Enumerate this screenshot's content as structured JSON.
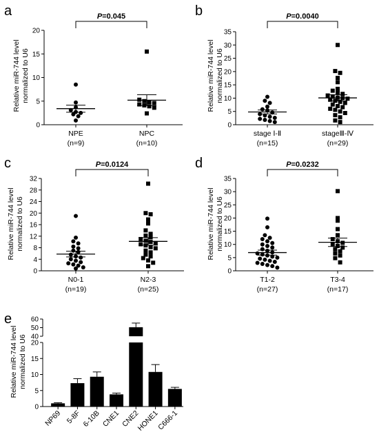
{
  "chart_data": [
    {
      "panel": "a",
      "type": "scatter",
      "ylabel": [
        "Relative miR-744 level",
        "normalized to U6"
      ],
      "ylim": [
        0,
        20
      ],
      "yticks": [
        "0",
        "5",
        "10",
        "15",
        "20"
      ],
      "pvalue": {
        "label": "P",
        "value": "=0.045"
      },
      "categories": [
        {
          "label": "NPE",
          "n": "(n=9)",
          "marker": "circle",
          "mean": 3.4,
          "sem": 0.75,
          "values": [
            8.5,
            4.7,
            3.7,
            3.1,
            2.7,
            2.5,
            2.2,
            1.8,
            0.9
          ]
        },
        {
          "label": "NPC",
          "n": "(n=10)",
          "marker": "square",
          "mean": 5.2,
          "sem": 1.15,
          "values": [
            15.5,
            5.3,
            5.0,
            4.8,
            4.6,
            4.3,
            4.1,
            3.9,
            3.6,
            2.4
          ]
        }
      ]
    },
    {
      "panel": "b",
      "type": "scatter",
      "ylabel": [
        "Relative miR-744 level",
        "normalized to U6"
      ],
      "ylim": [
        0,
        35
      ],
      "yticks": [
        "0",
        "5",
        "10",
        "15",
        "20",
        "25",
        "30",
        "35"
      ],
      "pvalue": {
        "label": "P",
        "value": "=0.0040"
      },
      "categories": [
        {
          "label": "stage Ⅰ-Ⅱ",
          "n": "(n=15)",
          "marker": "circle",
          "mean": 4.8,
          "sem": 0.75,
          "values": [
            10.5,
            9.0,
            8.2,
            6.8,
            5.8,
            5.4,
            4.6,
            4.0,
            3.5,
            3.0,
            2.6,
            2.2,
            1.8,
            1.4,
            1.0
          ]
        },
        {
          "label": "stageⅢ-Ⅳ",
          "n": "(n=29)",
          "marker": "square",
          "mean": 10.1,
          "sem": 1.2,
          "values": [
            30.0,
            20.2,
            19.5,
            17.6,
            16.0,
            13.5,
            12.8,
            12.0,
            11.6,
            11.0,
            10.6,
            10.2,
            10.0,
            9.8,
            9.4,
            9.0,
            8.6,
            8.2,
            7.6,
            7.0,
            6.6,
            6.0,
            5.6,
            5.0,
            4.4,
            3.6,
            2.8,
            1.6,
            1.0
          ]
        }
      ]
    },
    {
      "panel": "c",
      "type": "scatter",
      "ylabel": [
        "Relative miR-744 level",
        "normalized to U6"
      ],
      "ylim": [
        0,
        32
      ],
      "yticks": [
        "0",
        "4",
        "8",
        "12",
        "16",
        "20",
        "24",
        "28",
        "32"
      ],
      "pvalue": {
        "label": "P",
        "value": "=0.0124"
      },
      "categories": [
        {
          "label": "N0-1",
          "n": "(n=19)",
          "marker": "circle",
          "mean": 5.8,
          "sem": 1.0,
          "values": [
            19.0,
            11.5,
            10.2,
            9.5,
            8.4,
            7.8,
            7.0,
            6.5,
            5.6,
            5.0,
            4.6,
            4.0,
            3.5,
            3.0,
            2.6,
            2.2,
            1.8,
            1.2,
            0.8
          ]
        },
        {
          "label": "N2-3",
          "n": "(n=25)",
          "marker": "square",
          "mean": 10.2,
          "sem": 1.3,
          "values": [
            30.2,
            20.0,
            19.6,
            17.8,
            16.4,
            14.0,
            12.8,
            12.2,
            11.6,
            11.0,
            10.4,
            10.0,
            9.6,
            9.2,
            8.8,
            8.2,
            7.8,
            7.0,
            6.4,
            5.6,
            5.0,
            4.4,
            3.6,
            2.8,
            1.6
          ]
        }
      ]
    },
    {
      "panel": "d",
      "type": "scatter",
      "ylabel": [
        "Relative miR-744 level",
        "normalized to U6"
      ],
      "ylim": [
        0,
        35
      ],
      "yticks": [
        "0",
        "5",
        "10",
        "15",
        "20",
        "25",
        "30",
        "35"
      ],
      "pvalue": {
        "label": "P",
        "value": "=0.0232"
      },
      "categories": [
        {
          "label": "T1-2",
          "n": "(n=27)",
          "marker": "circle",
          "mean": 6.9,
          "sem": 0.95,
          "values": [
            19.8,
            16.5,
            13.5,
            12.5,
            12.0,
            11.2,
            10.5,
            10.0,
            9.4,
            8.8,
            8.2,
            7.6,
            7.0,
            6.6,
            6.2,
            5.8,
            5.4,
            5.0,
            4.6,
            4.2,
            3.8,
            3.4,
            3.0,
            2.6,
            2.2,
            1.8,
            1.2
          ]
        },
        {
          "label": "T3-4",
          "n": "(n=17)",
          "marker": "square",
          "mean": 10.8,
          "sem": 1.6,
          "values": [
            30.2,
            20.0,
            19.0,
            15.8,
            13.5,
            12.0,
            11.2,
            10.6,
            10.0,
            9.4,
            8.8,
            8.2,
            7.4,
            6.6,
            5.8,
            4.8,
            3.2
          ]
        }
      ]
    },
    {
      "panel": "e",
      "type": "bar",
      "ylabel": [
        "Relative miR-744 level",
        "normalized to U6"
      ],
      "axis_break": true,
      "lower_range": [
        0,
        20
      ],
      "lower_ticks": [
        "0",
        "5",
        "10",
        "15",
        "20"
      ],
      "upper_range": [
        40,
        60
      ],
      "upper_ticks": [
        "40",
        "50",
        "60"
      ],
      "categories": [
        "NP69",
        "5-8F",
        "6-10B",
        "CNE1",
        "CNE2",
        "HONE1",
        "C666-1"
      ],
      "values": [
        1.0,
        7.3,
        9.3,
        3.8,
        50.5,
        10.8,
        5.5
      ],
      "errors": [
        0.2,
        1.4,
        1.5,
        0.4,
        4.8,
        2.3,
        0.5
      ]
    }
  ]
}
